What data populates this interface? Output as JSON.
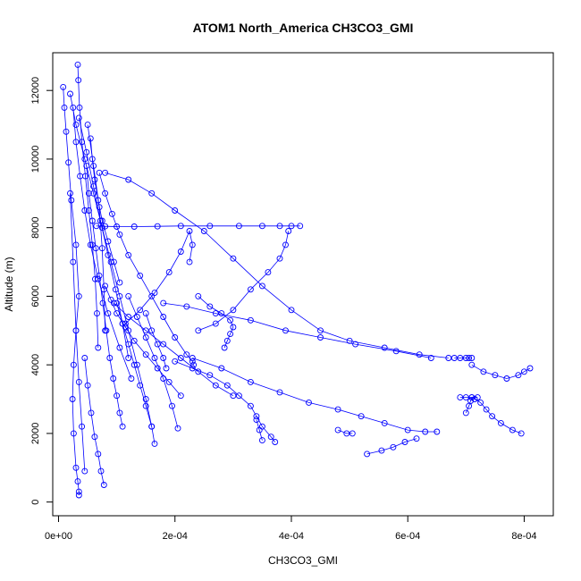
{
  "chart_data": {
    "type": "scatter",
    "title": "ATOM1 North_America CH3CO3_GMI",
    "xlabel": "CH3CO3_GMI",
    "ylabel": "Altitude (m)",
    "xlim": [
      -1e-05,
      0.00085
    ],
    "ylim": [
      -400,
      13100
    ],
    "xticks": [
      {
        "value": 0,
        "label": "0e+00"
      },
      {
        "value": 0.0002,
        "label": "2e-04"
      },
      {
        "value": 0.0004,
        "label": "4e-04"
      },
      {
        "value": 0.0006,
        "label": "6e-04"
      },
      {
        "value": 0.0008,
        "label": "8e-04"
      }
    ],
    "yticks": [
      {
        "value": 0,
        "label": "0"
      },
      {
        "value": 2000,
        "label": "2000"
      },
      {
        "value": 4000,
        "label": "4000"
      },
      {
        "value": 6000,
        "label": "6000"
      },
      {
        "value": 8000,
        "label": "8000"
      },
      {
        "value": 10000,
        "label": "10000"
      },
      {
        "value": 12000,
        "label": "12000"
      }
    ],
    "grid": false,
    "marker": "open-circle",
    "colors": {
      "series": "#0000ff",
      "axis": "#000000"
    },
    "series": [
      {
        "x": [
          8e-06,
          1e-05,
          1.3e-05,
          1.7e-05,
          2.2e-05,
          3e-05,
          3.5e-05,
          3e-05,
          2.6e-05,
          2.4e-05,
          2.6e-05,
          3e-05,
          3.3e-05,
          3.5e-05,
          3.5e-05
        ],
        "y": [
          12100,
          11500,
          10800,
          9900,
          8800,
          7500,
          6000,
          5000,
          4000,
          3000,
          2000,
          1000,
          600,
          300,
          200
        ]
      },
      {
        "x": [
          3.3e-05,
          3.4e-05,
          3.6e-05,
          4e-05,
          4.6e-05,
          5.2e-05,
          5.8e-05,
          6.3e-05,
          6.6e-05,
          6.8e-05
        ],
        "y": [
          12750,
          12300,
          11500,
          10500,
          9500,
          8500,
          7500,
          6500,
          5500,
          4500
        ]
      },
      {
        "x": [
          2e-05,
          3e-05,
          4.5e-05,
          6e-05,
          7.5e-05,
          9e-05,
          0.000105,
          0.00012,
          0.000135,
          0.00015,
          0.00016,
          0.000165
        ],
        "y": [
          11900,
          11000,
          10000,
          9000,
          8000,
          7000,
          6000,
          5000,
          4000,
          3000,
          2200,
          1700
        ]
      },
      {
        "x": [
          3.5e-05,
          4.8e-05,
          6e-05,
          7.2e-05,
          8.5e-05,
          9.8e-05,
          0.00011,
          0.00012
        ],
        "y": [
          11200,
          10200,
          9200,
          8200,
          7200,
          6200,
          5200,
          4200
        ]
      },
      {
        "x": [
          2.5e-05,
          3e-05,
          3.7e-05,
          4.5e-05,
          5.5e-05,
          6.8e-05,
          8.5e-05,
          0.000105,
          0.000125
        ],
        "y": [
          11500,
          10500,
          9500,
          8500,
          7500,
          6500,
          5500,
          4500,
          3600
        ]
      },
      {
        "x": [
          5e-05,
          6e-05,
          7e-05,
          7.5e-05,
          7.8e-05,
          8e-05
        ],
        "y": [
          11000,
          9800,
          8600,
          7400,
          6200,
          5000
        ]
      },
      {
        "x": [
          4.8e-05,
          5.2e-05,
          5.8e-05,
          6.4e-05,
          7e-05,
          7.6e-05,
          8.2e-05,
          8.8e-05,
          9.4e-05,
          0.0001,
          0.000105,
          0.00011
        ],
        "y": [
          9800,
          9000,
          8200,
          7400,
          6600,
          5800,
          5000,
          4200,
          3600,
          3100,
          2600,
          2200
        ]
      },
      {
        "x": [
          4.5e-05,
          5e-05,
          5.6e-05,
          6.2e-05,
          6.8e-05,
          7.3e-05,
          7.8e-05
        ],
        "y": [
          4200,
          3400,
          2600,
          1900,
          1400,
          900,
          500
        ]
      },
      {
        "x": [
          7e-05,
          8e-05,
          9.2e-05,
          0.000105,
          0.00012,
          0.00014,
          0.00016,
          0.00018,
          0.0002,
          0.00022,
          0.00023,
          0.000232
        ],
        "y": [
          9600,
          9000,
          8400,
          7800,
          7200,
          6600,
          6000,
          5400,
          4800,
          4300,
          4100,
          4000
        ]
      },
      {
        "x": [
          8e-05,
          9e-05,
          0.0001,
          0.000115,
          0.00013,
          0.00015,
          0.00017,
          0.00019,
          0.00021
        ],
        "y": [
          6300,
          5900,
          5500,
          5100,
          4700,
          4300,
          3900,
          3500,
          3100
        ]
      },
      {
        "x": [
          0.0001,
          0.00011,
          0.00012,
          0.00013,
          0.00014,
          0.00015,
          0.00016
        ],
        "y": [
          5800,
          5200,
          4600,
          4000,
          3400,
          2800,
          2200
        ]
      },
      {
        "x": [
          0.00012,
          0.000135,
          0.00015,
          0.000165,
          0.00018,
          0.000195,
          0.000205
        ],
        "y": [
          6000,
          5400,
          4800,
          4200,
          3600,
          2800,
          2150
        ]
      },
      {
        "x": [
          9.5e-05,
          0.00012,
          0.00015,
          0.00018,
          0.00021,
          0.00024,
          0.00027,
          0.0003
        ],
        "y": [
          5800,
          5400,
          5000,
          4600,
          4200,
          3800,
          3400,
          3100
        ]
      },
      {
        "x": [
          0.0002,
          0.00023,
          0.00026,
          0.00029,
          0.00031,
          0.00033,
          0.00034,
          0.00035,
          0.000365,
          0.000372
        ],
        "y": [
          4100,
          3900,
          3700,
          3400,
          3100,
          2800,
          2500,
          2200,
          1900,
          1750
        ]
      },
      {
        "x": [
          6.5e-05,
          8e-05,
          0.0001,
          0.00013,
          0.00017,
          0.00021,
          0.00026,
          0.00031,
          0.00035,
          0.00038,
          0.0004,
          0.000415
        ],
        "y": [
          8050,
          8040,
          8030,
          8030,
          8040,
          8050,
          8050,
          8050,
          8050,
          8050,
          8050,
          8050
        ]
      },
      {
        "x": [
          0.000115,
          0.00014,
          0.000165,
          0.00019,
          0.00021,
          0.000225,
          0.00023,
          0.000225
        ],
        "y": [
          5200,
          5600,
          6100,
          6700,
          7300,
          7900,
          7500,
          7000
        ]
      },
      {
        "x": [
          0.00024,
          0.00027,
          0.0003,
          0.00033,
          0.00036,
          0.00038,
          0.00039,
          0.000395
        ],
        "y": [
          5000,
          5200,
          5600,
          6200,
          6700,
          7100,
          7500,
          7900
        ]
      },
      {
        "x": [
          0.00024,
          0.00026,
          0.00028,
          0.000295,
          0.0003,
          0.000295,
          0.00029,
          0.000285
        ],
        "y": [
          6000,
          5700,
          5500,
          5300,
          5100,
          4900,
          4700,
          4500
        ]
      },
      {
        "x": [
          8e-05,
          0.00012,
          0.00016,
          0.0002,
          0.00025,
          0.0003,
          0.00035,
          0.0004,
          0.00045,
          0.0005,
          0.00056,
          0.00062,
          0.00067
        ],
        "y": [
          9600,
          9400,
          9000,
          8500,
          7900,
          7100,
          6300,
          5600,
          5000,
          4700,
          4500,
          4300,
          4200
        ]
      },
      {
        "x": [
          0.00018,
          0.00022,
          0.00027,
          0.00033,
          0.00039,
          0.00045,
          0.00051,
          0.00058,
          0.00064
        ],
        "y": [
          5800,
          5700,
          5500,
          5300,
          5000,
          4800,
          4600,
          4400,
          4200
        ]
      },
      {
        "x": [
          0.00068,
          0.00069,
          0.0007,
          0.000705,
          0.00071
        ],
        "y": [
          4200,
          4200,
          4200,
          4200,
          4200
        ]
      },
      {
        "x": [
          0.00023,
          0.00028,
          0.00033,
          0.00038,
          0.00043,
          0.00048,
          0.00052,
          0.00056,
          0.0006,
          0.00063,
          0.00065
        ],
        "y": [
          4200,
          3900,
          3500,
          3200,
          2900,
          2700,
          2500,
          2300,
          2100,
          2050,
          2050
        ]
      },
      {
        "x": [
          0.00053,
          0.000555,
          0.000575,
          0.000595,
          0.000615
        ],
        "y": [
          1400,
          1500,
          1600,
          1750,
          1850
        ]
      },
      {
        "x": [
          0.00071,
          0.00073,
          0.00075,
          0.00077,
          0.00079,
          0.0008,
          0.00081
        ],
        "y": [
          4000,
          3800,
          3700,
          3600,
          3700,
          3800,
          3900
        ]
      },
      {
        "x": [
          0.0007,
          0.000705,
          0.000708,
          0.00071,
          0.000715,
          0.000725,
          0.000735,
          0.000745,
          0.00076,
          0.00078,
          0.000795
        ],
        "y": [
          2600,
          2800,
          2950,
          3050,
          3000,
          2900,
          2700,
          2500,
          2300,
          2100,
          2000
        ]
      },
      {
        "x": [
          0.00069,
          0.0007,
          0.00071,
          0.00072
        ],
        "y": [
          3050,
          3050,
          3050,
          3050
        ]
      },
      {
        "x": [
          2e-05,
          2.5e-05,
          3e-05,
          3.5e-05,
          4e-05,
          4.5e-05
        ],
        "y": [
          9000,
          7000,
          5000,
          3500,
          2200,
          900
        ]
      },
      {
        "x": [
          5.5e-05,
          5.8e-05,
          6.2e-05,
          6.8e-05,
          7.5e-05,
          8.5e-05,
          9.5e-05,
          0.000105
        ],
        "y": [
          10600,
          10000,
          9400,
          8800,
          8200,
          7600,
          7000,
          6400
        ]
      },
      {
        "x": [
          0.00015,
          0.00016,
          0.00017,
          0.00018,
          0.000185
        ],
        "y": [
          5500,
          5000,
          4600,
          4200,
          3900
        ]
      },
      {
        "x": [
          0.00034,
          0.000345,
          0.00035
        ],
        "y": [
          2400,
          2100,
          1800
        ]
      },
      {
        "x": [
          0.00048,
          0.000495,
          0.000505
        ],
        "y": [
          2100,
          2000,
          2000
        ]
      }
    ]
  }
}
